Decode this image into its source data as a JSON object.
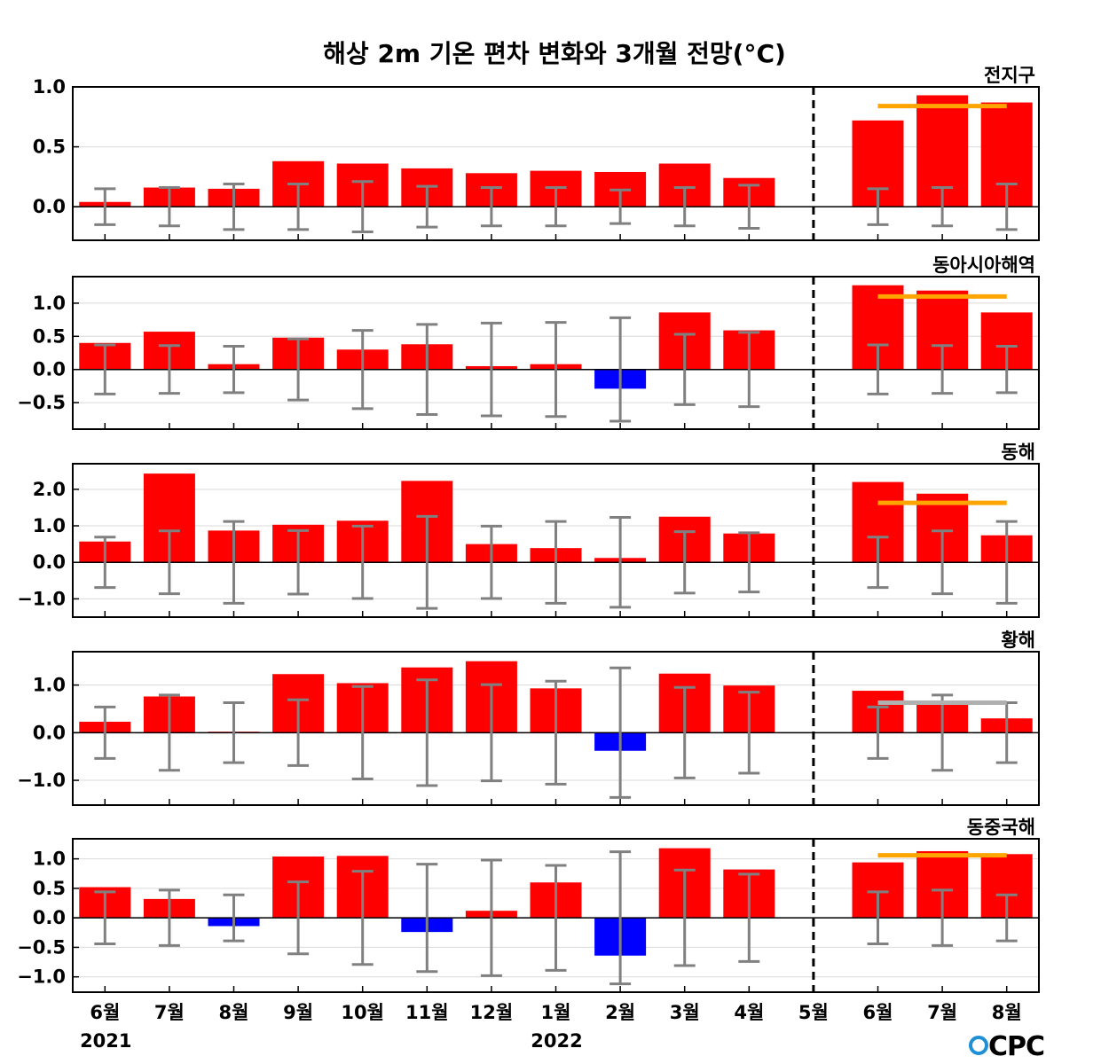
{
  "chart_data": {
    "type": "bar",
    "title": "해상 2m 기온 편차 변화와 3개월 전망(°C)",
    "categories": [
      "6월",
      "7월",
      "8월",
      "9월",
      "10월",
      "11월",
      "12월",
      "1월",
      "2월",
      "3월",
      "4월",
      "5월",
      "6월",
      "7월",
      "8월"
    ],
    "year_labels": [
      {
        "index": 0,
        "label": "2021"
      },
      {
        "index": 7,
        "label": "2022"
      }
    ],
    "divider_after_index": 11,
    "colors": {
      "positive": "#ff0000",
      "negative": "#0000ff",
      "errorbar": "#808080",
      "outlook_above": "#ffa500",
      "outlook_normal": "#b0b0b0",
      "divider": "#000000"
    },
    "logo": "CPC",
    "panels": [
      {
        "name": "전지구",
        "ylim": [
          -0.28,
          1.0
        ],
        "yticks": [
          0.0,
          0.5,
          1.0
        ],
        "ytick_labels": [
          "0.0",
          "0.5",
          "1.0"
        ],
        "values": [
          0.04,
          0.16,
          0.15,
          0.38,
          0.36,
          0.32,
          0.28,
          0.3,
          0.29,
          0.36,
          0.24,
          0.0,
          0.72,
          0.93,
          0.87
        ],
        "error_half": [
          0.15,
          0.16,
          0.19,
          0.19,
          0.21,
          0.17,
          0.16,
          0.16,
          0.14,
          0.16,
          0.18,
          null,
          0.15,
          0.16,
          0.19
        ],
        "outlook": {
          "value": 0.84,
          "color": "orange"
        }
      },
      {
        "name": "동아시아해역",
        "ylim": [
          -0.9,
          1.4
        ],
        "yticks": [
          -0.5,
          0.0,
          0.5,
          1.0
        ],
        "ytick_labels": [
          "−0.5",
          "0.0",
          "0.5",
          "1.0"
        ],
        "values": [
          0.4,
          0.57,
          0.08,
          0.48,
          0.3,
          0.38,
          0.05,
          0.08,
          -0.29,
          0.86,
          0.59,
          0.0,
          1.27,
          1.19,
          0.86
        ],
        "error_half": [
          0.37,
          0.36,
          0.35,
          0.46,
          0.59,
          0.68,
          0.7,
          0.71,
          0.78,
          0.53,
          0.56,
          null,
          0.37,
          0.36,
          0.35
        ],
        "outlook": {
          "value": 1.1,
          "color": "orange"
        }
      },
      {
        "name": "동해",
        "ylim": [
          -1.5,
          2.7
        ],
        "yticks": [
          -1.0,
          0.0,
          1.0,
          2.0
        ],
        "ytick_labels": [
          "−1.0",
          "0.0",
          "1.0",
          "2.0"
        ],
        "values": [
          0.57,
          2.43,
          0.87,
          1.03,
          1.14,
          2.23,
          0.5,
          0.39,
          0.12,
          1.25,
          0.79,
          0.0,
          2.2,
          1.88,
          0.74
        ],
        "error_half": [
          0.69,
          0.86,
          1.12,
          0.87,
          0.99,
          1.26,
          0.99,
          1.12,
          1.23,
          0.84,
          0.81,
          null,
          0.69,
          0.86,
          1.12
        ],
        "outlook": {
          "value": 1.63,
          "color": "orange"
        }
      },
      {
        "name": "황해",
        "ylim": [
          -1.52,
          1.7
        ],
        "yticks": [
          -1.0,
          0.0,
          1.0
        ],
        "ytick_labels": [
          "−1.0",
          "0.0",
          "1.0"
        ],
        "values": [
          0.23,
          0.76,
          0.02,
          1.23,
          1.04,
          1.37,
          1.5,
          0.93,
          -0.38,
          1.24,
          0.99,
          0.0,
          0.88,
          0.66,
          0.3
        ],
        "error_half": [
          0.54,
          0.79,
          0.63,
          0.69,
          0.97,
          1.11,
          1.01,
          1.08,
          1.36,
          0.95,
          0.85,
          null,
          0.54,
          0.79,
          0.63
        ],
        "outlook": {
          "value": 0.63,
          "color": "gray"
        }
      },
      {
        "name": "동중국해",
        "ylim": [
          -1.26,
          1.34
        ],
        "yticks": [
          -1.0,
          -0.5,
          0.0,
          0.5,
          1.0
        ],
        "ytick_labels": [
          "−1.0",
          "−0.5",
          "0.0",
          "0.5",
          "1.0"
        ],
        "values": [
          0.52,
          0.32,
          -0.14,
          1.04,
          1.05,
          -0.24,
          0.12,
          0.6,
          -0.64,
          1.18,
          0.82,
          0.0,
          0.94,
          1.13,
          1.08
        ],
        "error_half": [
          0.44,
          0.47,
          0.39,
          0.61,
          0.79,
          0.91,
          0.98,
          0.89,
          1.12,
          0.81,
          0.74,
          null,
          0.44,
          0.47,
          0.39
        ],
        "outlook": {
          "value": 1.06,
          "color": "orange"
        }
      }
    ]
  }
}
